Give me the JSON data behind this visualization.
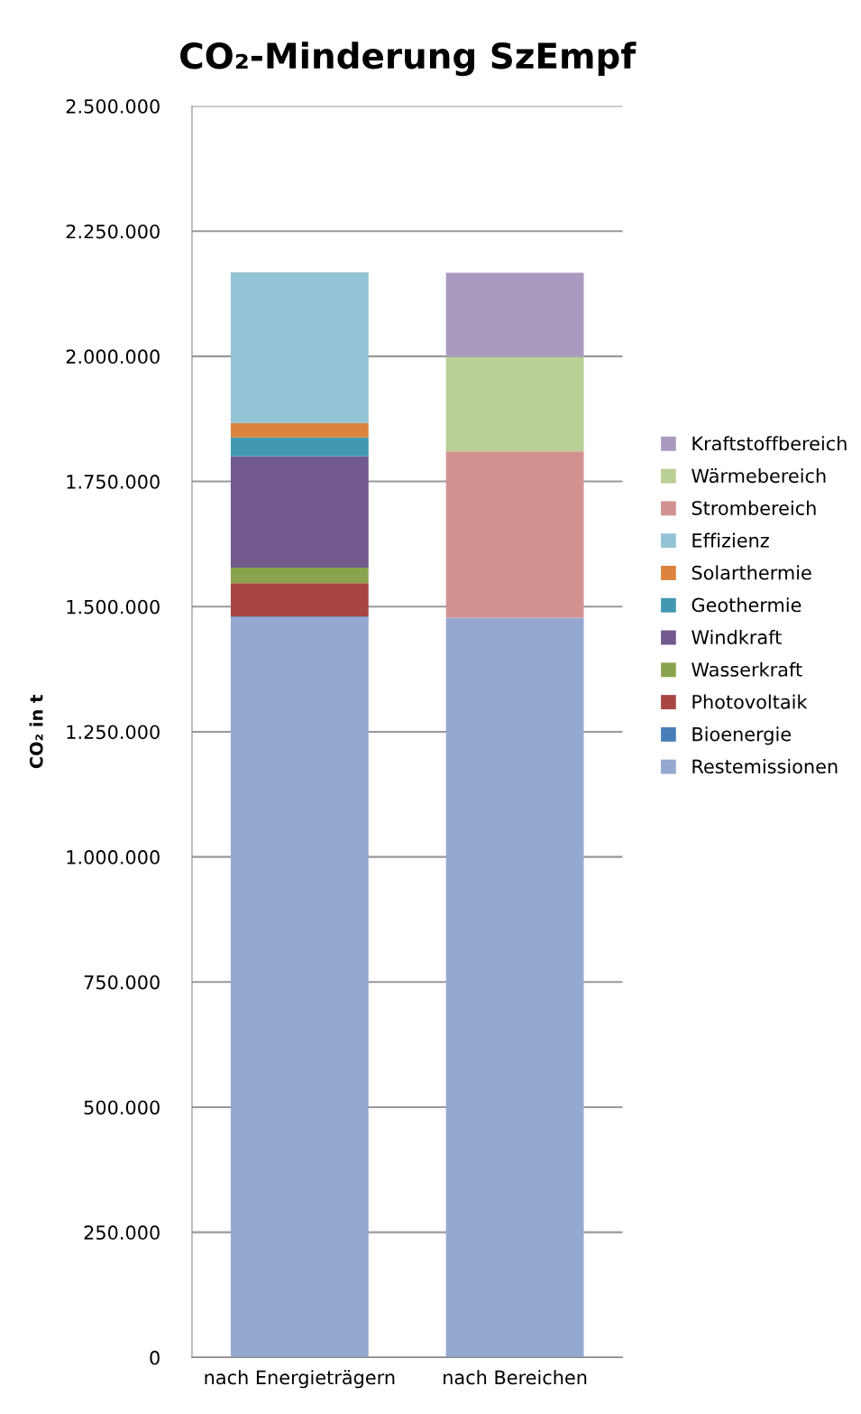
{
  "chart_data": {
    "type": "bar",
    "title": "CO₂-Minderung SzEmpf",
    "ylabel": "CO₂ in t",
    "categories": [
      "nach Energieträgern",
      "nach Bereichen"
    ],
    "stacked": true,
    "series": [
      {
        "name": "Restemissionen",
        "color": "#95a9d0",
        "values": [
          1478000,
          1478000
        ]
      },
      {
        "name": "Bioenergie",
        "color": "#4a7ebb",
        "values": [
          2000,
          null
        ]
      },
      {
        "name": "Photovoltaik",
        "color": "#a84646",
        "values": [
          67000,
          null
        ]
      },
      {
        "name": "Wasserkraft",
        "color": "#8aa44e",
        "values": [
          31000,
          null
        ]
      },
      {
        "name": "Windkraft",
        "color": "#71598e",
        "values": [
          222000,
          null
        ]
      },
      {
        "name": "Geothermie",
        "color": "#4298b0",
        "values": [
          38000,
          null
        ]
      },
      {
        "name": "Solarthermie",
        "color": "#dc843e",
        "values": [
          29000,
          null
        ]
      },
      {
        "name": "Effizienz",
        "color": "#93c3d5",
        "values": [
          301000,
          null
        ]
      },
      {
        "name": "Strombereich",
        "color": "#d29292",
        "values": [
          null,
          332000
        ]
      },
      {
        "name": "Wärmebereich",
        "color": "#b9cf96",
        "values": [
          null,
          189000
        ]
      },
      {
        "name": "Kraftstoffbereich",
        "color": "#a99bbf",
        "values": [
          null,
          168000
        ]
      }
    ],
    "ylim": [
      0,
      2500000
    ],
    "yticks": [
      0,
      {
        "value": 250000,
        "label": "250.000"
      },
      {
        "value": 500000,
        "label": "500.000"
      },
      {
        "value": 750000,
        "label": "750.000"
      },
      {
        "value": 1000000,
        "label": "1.000.000"
      },
      {
        "value": 1250000,
        "label": "1.250.000"
      },
      {
        "value": 1500000,
        "label": "1.500.000"
      },
      {
        "value": 1750000,
        "label": "1.750.000"
      },
      {
        "value": 2000000,
        "label": "2.000.000"
      },
      {
        "value": 2250000,
        "label": "2.250.000"
      },
      {
        "value": 2500000,
        "label": "2.500.000"
      }
    ],
    "grid": "y",
    "legend": "right"
  }
}
